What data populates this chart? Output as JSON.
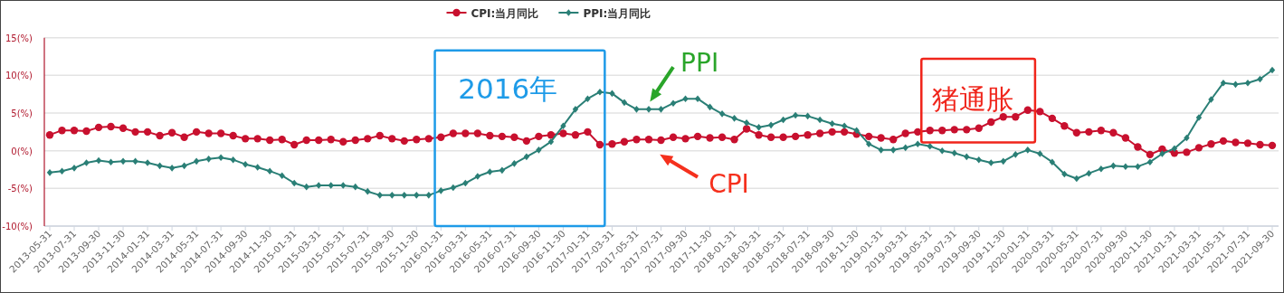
{
  "chart_data": {
    "type": "line",
    "categories": [
      "2013-05-31",
      null,
      "2013-07-31",
      null,
      "2013-09-30",
      null,
      "2013-11-30",
      null,
      "2014-01-31",
      null,
      "2014-03-31",
      null,
      "2014-05-31",
      null,
      "2014-07-31",
      null,
      "2014-09-30",
      null,
      "2014-11-30",
      null,
      "2015-01-31",
      null,
      "2015-03-31",
      null,
      "2015-05-31",
      null,
      "2015-07-31",
      null,
      "2015-09-30",
      null,
      "2015-11-30",
      null,
      "2016-01-31",
      null,
      "2016-03-31",
      null,
      "2016-05-31",
      null,
      "2016-07-31",
      null,
      "2016-09-30",
      null,
      "2016-11-30",
      null,
      "2017-01-31",
      null,
      "2017-03-31",
      null,
      "2017-05-31",
      null,
      "2017-07-31",
      null,
      "2017-09-30",
      null,
      "2017-11-30",
      null,
      "2018-01-31",
      null,
      "2018-03-31",
      null,
      "2018-05-31",
      null,
      "2018-07-31",
      null,
      "2018-09-30",
      null,
      "2018-11-30",
      null,
      "2019-01-31",
      null,
      "2019-03-31",
      null,
      "2019-05-31",
      null,
      "2019-07-31",
      null,
      "2019-09-30",
      null,
      "2019-11-30",
      null,
      "2020-01-31",
      null,
      "2020-03-31",
      null,
      "2020-05-31",
      null,
      "2020-07-31",
      null,
      "2020-09-30",
      null,
      "2020-11-30",
      null,
      "2021-01-31",
      null,
      "2021-03-31",
      null,
      "2021-05-31",
      null,
      "2021-07-31",
      null,
      "2021-09-30"
    ],
    "series": [
      {
        "name": "CPI:当月同比",
        "color": "#c8102e",
        "marker": "circle",
        "values": [
          2.1,
          2.7,
          2.7,
          2.6,
          3.1,
          3.2,
          3.0,
          2.5,
          2.5,
          2.0,
          2.4,
          1.8,
          2.5,
          2.3,
          2.3,
          2.0,
          1.6,
          1.6,
          1.4,
          1.5,
          0.8,
          1.4,
          1.4,
          1.5,
          1.2,
          1.4,
          1.6,
          2.0,
          1.6,
          1.3,
          1.5,
          1.6,
          1.8,
          2.3,
          2.3,
          2.3,
          2.0,
          1.9,
          1.8,
          1.3,
          1.9,
          2.1,
          2.3,
          2.1,
          2.5,
          0.8,
          0.9,
          1.2,
          1.5,
          1.5,
          1.4,
          1.8,
          1.6,
          1.9,
          1.7,
          1.8,
          1.5,
          2.9,
          2.1,
          1.8,
          1.8,
          1.9,
          2.1,
          2.3,
          2.5,
          2.5,
          2.2,
          1.9,
          1.7,
          1.5,
          2.3,
          2.5,
          2.7,
          2.7,
          2.8,
          2.8,
          3.0,
          3.8,
          4.5,
          4.5,
          5.4,
          5.2,
          4.3,
          3.3,
          2.4,
          2.5,
          2.7,
          2.4,
          1.7,
          0.5,
          -0.5,
          0.2,
          -0.3,
          -0.2,
          0.4,
          0.9,
          1.3,
          1.1,
          1.0,
          0.8,
          0.7
        ]
      },
      {
        "name": "PPI:当月同比",
        "color": "#2a7f76",
        "marker": "diamond",
        "values": [
          -2.9,
          -2.7,
          -2.3,
          -1.6,
          -1.3,
          -1.5,
          -1.4,
          -1.4,
          -1.6,
          -2.0,
          -2.3,
          -2.0,
          -1.4,
          -1.1,
          -0.9,
          -1.2,
          -1.8,
          -2.2,
          -2.7,
          -3.3,
          -4.3,
          -4.8,
          -4.6,
          -4.6,
          -4.6,
          -4.8,
          -5.4,
          -5.9,
          -5.9,
          -5.9,
          -5.9,
          -5.9,
          -5.3,
          -4.9,
          -4.3,
          -3.4,
          -2.8,
          -2.6,
          -1.7,
          -0.8,
          0.1,
          1.2,
          3.3,
          5.5,
          6.9,
          7.8,
          7.6,
          6.4,
          5.5,
          5.5,
          5.5,
          6.3,
          6.9,
          6.9,
          5.8,
          4.9,
          4.3,
          3.7,
          3.1,
          3.4,
          4.1,
          4.7,
          4.6,
          4.1,
          3.6,
          3.3,
          2.7,
          0.9,
          0.1,
          0.1,
          0.4,
          0.9,
          0.6,
          0.0,
          -0.3,
          -0.8,
          -1.2,
          -1.6,
          -1.4,
          -0.5,
          0.1,
          -0.4,
          -1.5,
          -3.1,
          -3.7,
          -3.0,
          -2.4,
          -2.0,
          -2.1,
          -2.1,
          -1.5,
          -0.4,
          0.3,
          1.7,
          4.4,
          6.8,
          9.0,
          8.8,
          9.0,
          9.5,
          10.7
        ]
      }
    ],
    "ylim": [
      -10,
      15
    ],
    "yticks": [
      {
        "value": -10,
        "label": "-10(%)"
      },
      {
        "value": -5,
        "label": "-5(%)"
      },
      {
        "value": 0,
        "label": "0(%)"
      },
      {
        "value": 5,
        "label": "5(%)"
      },
      {
        "value": 10,
        "label": "10(%)"
      },
      {
        "value": 15,
        "label": "15(%)"
      }
    ],
    "grid": "y",
    "legend": "top",
    "line_style": "solid",
    "annotations": [
      "2016年",
      "PPI",
      "CPI",
      "猪通胀"
    ]
  }
}
